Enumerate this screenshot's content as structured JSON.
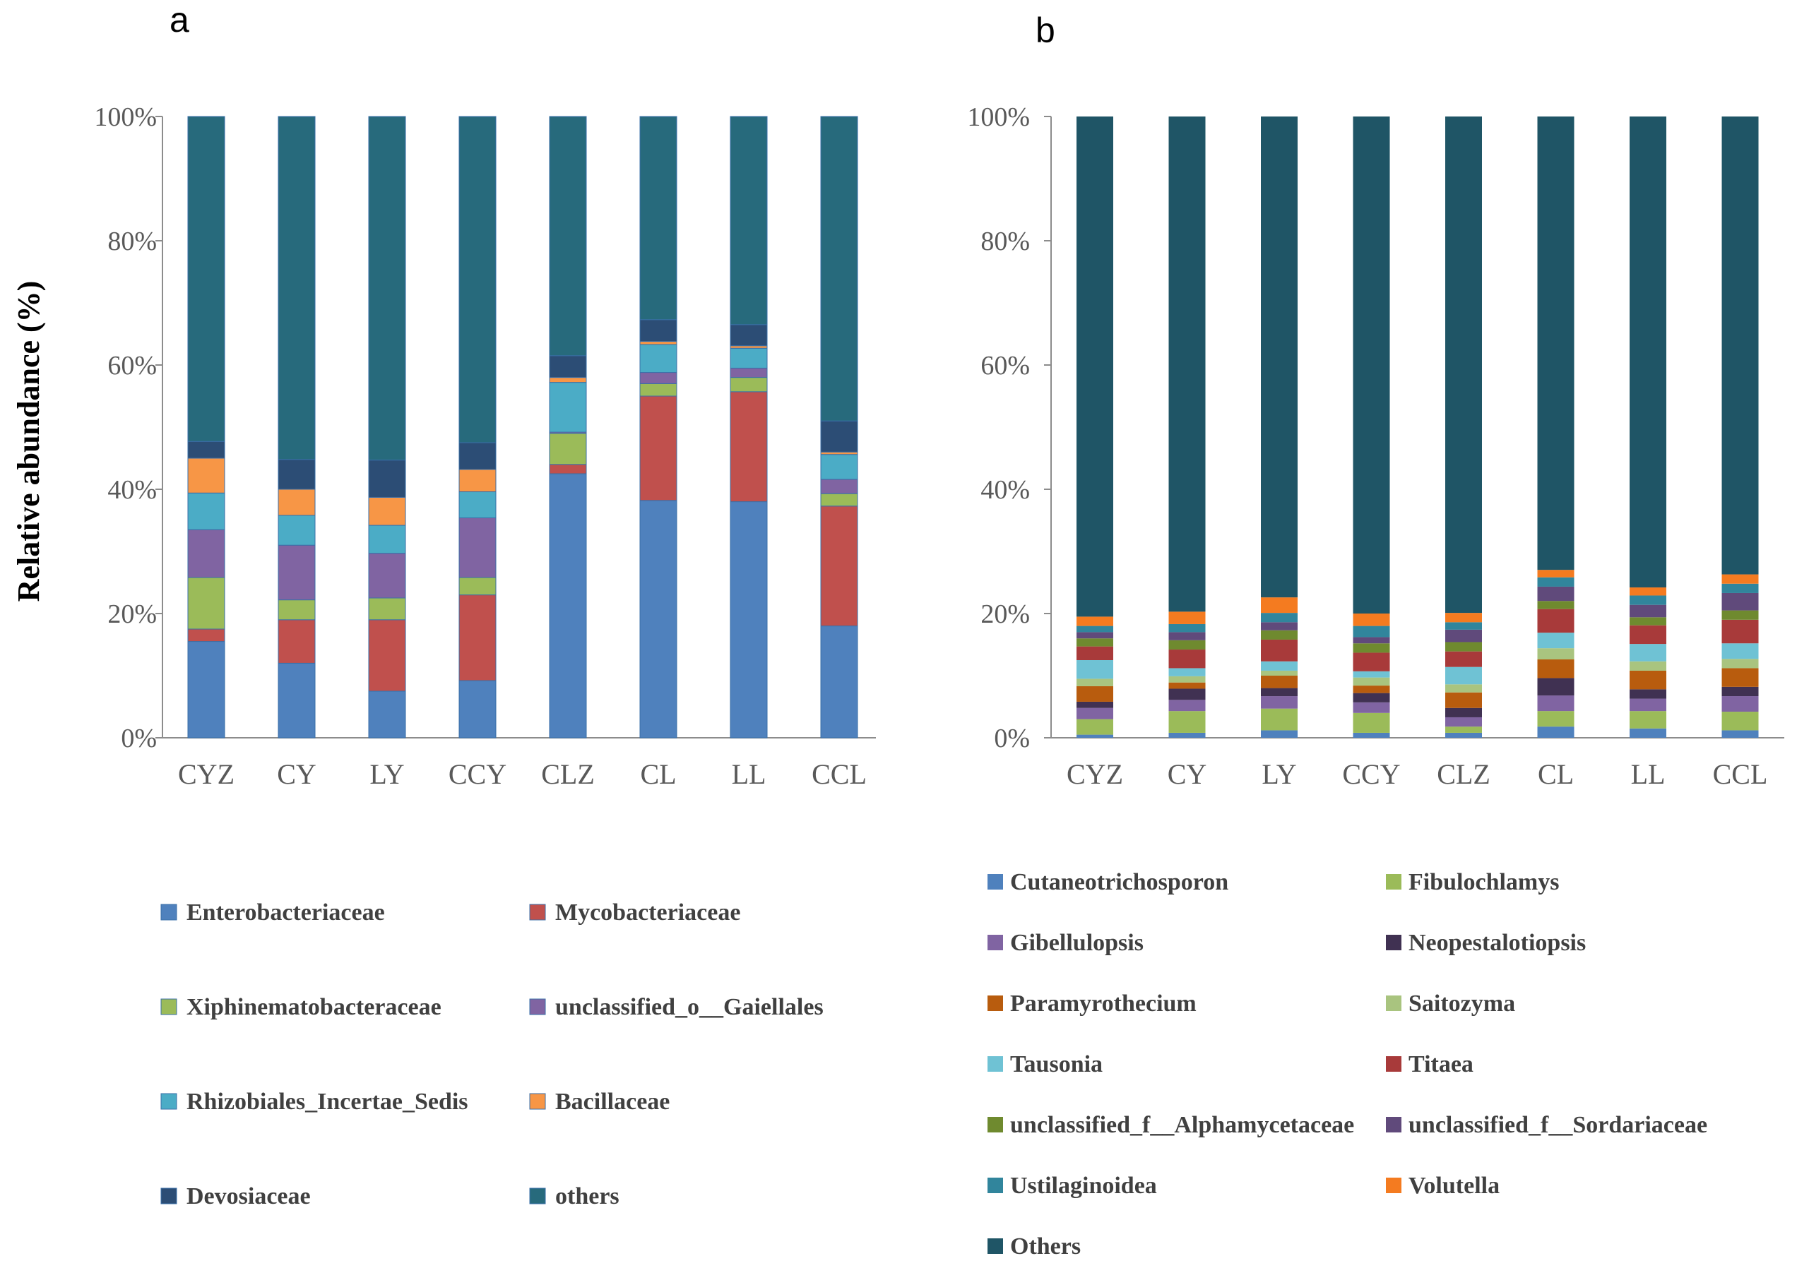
{
  "chart_data": [
    {
      "panel": "a",
      "type": "bar",
      "stacked": true,
      "percent": true,
      "ylabel": "Relative abundance (%)",
      "ylim": [
        0,
        100
      ],
      "yticks": [
        "0%",
        "20%",
        "40%",
        "60%",
        "80%",
        "100%"
      ],
      "categories": [
        "CYZ",
        "CY",
        "LY",
        "CCY",
        "CLZ",
        "CL",
        "LL",
        "CCL"
      ],
      "series": [
        {
          "name": "Enterobacteriaceae",
          "color": "#4f81bd",
          "values": [
            15.5,
            12.0,
            7.5,
            9.2,
            42.5,
            38.2,
            38.0,
            18.0
          ]
        },
        {
          "name": "Mycobacteriaceae",
          "color": "#c0504d",
          "values": [
            2.0,
            7.0,
            11.5,
            13.8,
            1.5,
            16.8,
            17.7,
            19.3
          ]
        },
        {
          "name": "Xiphinematobacteraceae",
          "color": "#9bbb59",
          "values": [
            8.3,
            3.2,
            3.5,
            2.8,
            5.0,
            2.0,
            2.3,
            2.0
          ]
        },
        {
          "name": "unclassified_o__Gaiellales",
          "color": "#8064a2",
          "values": [
            7.7,
            8.8,
            7.2,
            9.6,
            0.2,
            1.8,
            1.5,
            2.3
          ]
        },
        {
          "name": "Rhizobiales_Incertae_Sedis",
          "color": "#4bacc6",
          "values": [
            5.9,
            4.8,
            4.5,
            4.2,
            8.0,
            4.5,
            3.2,
            4.0
          ]
        },
        {
          "name": "Bacillaceae",
          "color": "#f79646",
          "values": [
            5.6,
            4.2,
            4.5,
            3.6,
            0.8,
            0.5,
            0.4,
            0.4
          ]
        },
        {
          "name": "Devosiaceae",
          "color": "#2c4d75",
          "values": [
            2.7,
            4.8,
            6.0,
            4.3,
            3.5,
            3.5,
            3.4,
            5.0
          ]
        },
        {
          "name": "others",
          "color": "#276a7c",
          "values": [
            52.3,
            55.2,
            55.3,
            52.5,
            38.5,
            32.7,
            33.5,
            49.0
          ]
        }
      ]
    },
    {
      "panel": "b",
      "type": "bar",
      "stacked": true,
      "percent": true,
      "ylim": [
        0,
        100
      ],
      "yticks": [
        "0%",
        "20%",
        "40%",
        "60%",
        "80%",
        "100%"
      ],
      "categories": [
        "CYZ",
        "CY",
        "LY",
        "CCY",
        "CLZ",
        "CL",
        "LL",
        "CCL"
      ],
      "series": [
        {
          "name": "Cutaneotrichosporon",
          "color": "#4f81bd",
          "values": [
            0.5,
            0.8,
            1.2,
            0.8,
            0.8,
            1.8,
            1.5,
            1.2
          ]
        },
        {
          "name": "Fibulochlamys",
          "color": "#9bbb59",
          "values": [
            2.5,
            3.5,
            3.5,
            3.2,
            1.0,
            2.5,
            2.8,
            3.0
          ]
        },
        {
          "name": "Gibellulopsis",
          "color": "#8064a2",
          "values": [
            1.8,
            1.8,
            2.0,
            1.7,
            1.5,
            2.5,
            2.0,
            2.5
          ]
        },
        {
          "name": "Neopestalotiopsis",
          "color": "#403152",
          "values": [
            1.0,
            1.8,
            1.3,
            1.5,
            1.5,
            2.8,
            1.5,
            1.5
          ]
        },
        {
          "name": "Paramyrothecium",
          "color": "#b85c0e",
          "values": [
            2.5,
            1.0,
            2.0,
            1.2,
            2.5,
            3.0,
            3.0,
            3.0
          ]
        },
        {
          "name": "Saitozyma",
          "color": "#a9c47f",
          "values": [
            1.2,
            1.0,
            0.8,
            1.3,
            1.3,
            1.8,
            1.5,
            1.5
          ]
        },
        {
          "name": "Tausonia",
          "color": "#6fc2d4",
          "values": [
            3.0,
            1.3,
            1.5,
            1.0,
            2.8,
            2.5,
            2.8,
            2.5
          ]
        },
        {
          "name": "Titaea",
          "color": "#a83a3a",
          "values": [
            2.2,
            3.0,
            3.5,
            3.0,
            2.5,
            3.8,
            3.0,
            3.8
          ]
        },
        {
          "name": "unclassified_f__Alphamycetaceae",
          "color": "#6f8a2f",
          "values": [
            1.3,
            1.5,
            1.5,
            1.5,
            1.5,
            1.3,
            1.3,
            1.5
          ]
        },
        {
          "name": "unclassified_f__Sordariaceae",
          "color": "#604a7b",
          "values": [
            1.0,
            1.3,
            1.3,
            1.0,
            2.0,
            2.3,
            2.0,
            2.8
          ]
        },
        {
          "name": "Ustilaginoidea",
          "color": "#31859c",
          "values": [
            1.0,
            1.3,
            1.5,
            1.8,
            1.2,
            1.5,
            1.5,
            1.5
          ]
        },
        {
          "name": "Volutella",
          "color": "#f47b20",
          "values": [
            1.5,
            2.0,
            2.5,
            2.0,
            1.5,
            1.2,
            1.3,
            1.5
          ]
        },
        {
          "name": "Others",
          "color": "#1f5566",
          "values": [
            80.5,
            79.7,
            77.4,
            80.0,
            79.9,
            72.9,
            75.8,
            73.7
          ]
        }
      ]
    }
  ]
}
